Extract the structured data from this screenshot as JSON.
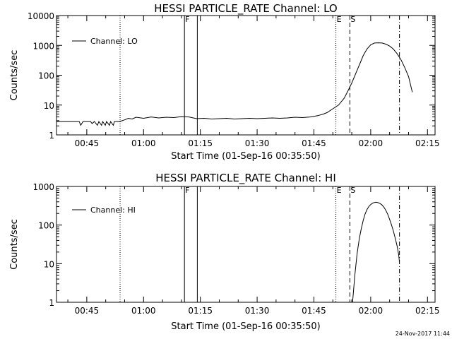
{
  "chart_data": [
    {
      "type": "line",
      "title": "HESSI PARTICLE_RATE Channel: LO",
      "xlabel": "Start Time (01-Sep-16 00:35:50)",
      "ylabel": "Counts/sec",
      "yscale": "log",
      "ylim": [
        1,
        10000
      ],
      "xlim_minutes_after_midnight": [
        37,
        137
      ],
      "x_ticks": [
        {
          "label": "00:45",
          "minutes": 45
        },
        {
          "label": "01:00",
          "minutes": 60
        },
        {
          "label": "01:15",
          "minutes": 75
        },
        {
          "label": "01:30",
          "minutes": 90
        },
        {
          "label": "01:45",
          "minutes": 105
        },
        {
          "label": "02:00",
          "minutes": 120
        },
        {
          "label": "02:15",
          "minutes": 135
        }
      ],
      "y_ticks": [
        {
          "label": "1",
          "value": 1
        },
        {
          "label": "10",
          "value": 10
        },
        {
          "label": "100",
          "value": 100
        },
        {
          "label": "1000",
          "value": 1000
        },
        {
          "label": "10000",
          "value": 10000
        }
      ],
      "legend": {
        "label": "Channel: LO",
        "position": "top-left"
      },
      "series": [
        {
          "x": [
            37,
            40,
            43,
            43.4,
            44,
            46,
            46.4,
            47,
            47.8,
            48.2,
            48.9,
            49.2,
            49.9,
            50.2,
            51,
            51.3,
            52,
            52.3,
            53.5,
            54,
            55,
            56,
            57,
            58,
            60,
            62,
            64,
            66,
            68,
            70,
            72,
            74,
            76,
            78,
            80,
            82,
            84,
            86,
            88,
            90,
            92,
            94,
            96,
            98,
            100,
            102,
            104,
            106,
            107.5,
            108.5,
            110,
            111.5,
            113,
            114,
            115,
            116,
            117,
            118,
            119,
            120,
            121,
            122,
            123,
            124,
            125,
            126,
            127,
            128,
            129,
            130,
            131
          ],
          "y": [
            2.8,
            2.8,
            2.8,
            2.1,
            2.8,
            2.8,
            2.4,
            2.8,
            2.1,
            2.8,
            2.1,
            2.8,
            2.1,
            2.8,
            2.1,
            2.8,
            2.1,
            2.8,
            2.8,
            2.9,
            3.2,
            3.6,
            3.4,
            3.9,
            3.6,
            4.0,
            3.7,
            3.9,
            3.8,
            4.1,
            4.0,
            3.5,
            3.6,
            3.4,
            3.5,
            3.6,
            3.4,
            3.5,
            3.6,
            3.5,
            3.6,
            3.7,
            3.6,
            3.7,
            3.9,
            3.8,
            4.0,
            4.4,
            5.0,
            5.6,
            7.5,
            10,
            17,
            30,
            55,
            110,
            220,
            450,
            750,
            1050,
            1200,
            1220,
            1200,
            1100,
            950,
            750,
            520,
            330,
            180,
            90,
            27
          ]
        }
      ],
      "markers": [
        {
          "label": "",
          "minutes": 53.8,
          "style": "dotted"
        },
        {
          "label": "F",
          "minutes": 70.8,
          "style": "solid"
        },
        {
          "label": "",
          "minutes": 74.2,
          "style": "solid"
        },
        {
          "label": "E",
          "minutes": 110.8,
          "style": "dotted"
        },
        {
          "label": "S",
          "minutes": 114.5,
          "style": "dashed"
        },
        {
          "label": "",
          "minutes": 127.6,
          "style": "dashdot"
        }
      ]
    },
    {
      "type": "line",
      "title": "HESSI PARTICLE_RATE Channel: HI",
      "xlabel": "Start Time (01-Sep-16 00:35:50)",
      "ylabel": "Counts/sec",
      "yscale": "log",
      "ylim": [
        1,
        1000
      ],
      "xlim_minutes_after_midnight": [
        37,
        137
      ],
      "x_ticks": [
        {
          "label": "00:45",
          "minutes": 45
        },
        {
          "label": "01:00",
          "minutes": 60
        },
        {
          "label": "01:15",
          "minutes": 75
        },
        {
          "label": "01:30",
          "minutes": 90
        },
        {
          "label": "01:45",
          "minutes": 105
        },
        {
          "label": "02:00",
          "minutes": 120
        },
        {
          "label": "02:15",
          "minutes": 135
        }
      ],
      "y_ticks": [
        {
          "label": "1",
          "value": 1
        },
        {
          "label": "10",
          "value": 10
        },
        {
          "label": "100",
          "value": 100
        },
        {
          "label": "1000",
          "value": 1000
        }
      ],
      "legend": {
        "label": "Channel: HI",
        "position": "top-left"
      },
      "series": [
        {
          "x": [
            115.2,
            115.8,
            116.4,
            117,
            117.5,
            118,
            118.5,
            119,
            119.5,
            120,
            120.5,
            121,
            121.5,
            122,
            122.5,
            123,
            123.5,
            124,
            124.5,
            125,
            125.5,
            126,
            126.5,
            127,
            127.4,
            127.6
          ],
          "y": [
            1,
            5,
            18,
            45,
            80,
            130,
            190,
            250,
            300,
            340,
            370,
            385,
            390,
            380,
            360,
            330,
            290,
            240,
            190,
            140,
            100,
            70,
            45,
            28,
            17,
            11
          ]
        }
      ],
      "markers": [
        {
          "label": "",
          "minutes": 53.8,
          "style": "dotted"
        },
        {
          "label": "F",
          "minutes": 70.8,
          "style": "solid"
        },
        {
          "label": "",
          "minutes": 74.2,
          "style": "solid"
        },
        {
          "label": "E",
          "minutes": 110.8,
          "style": "dotted"
        },
        {
          "label": "S",
          "minutes": 114.5,
          "style": "dashed"
        },
        {
          "label": "",
          "minutes": 127.6,
          "style": "dashdot"
        }
      ]
    }
  ],
  "footer": {
    "timestamp": "24-Nov-2017 11:44"
  }
}
